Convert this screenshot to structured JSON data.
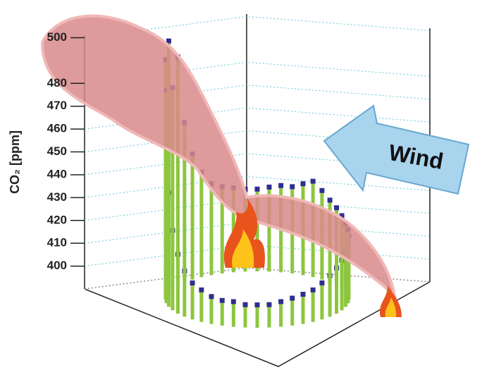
{
  "chart_data": {
    "type": "stem3d",
    "y_label": "CO₂ [ppm]",
    "annotation": "Wind",
    "ylim": [
      390,
      502
    ],
    "yticks": [
      400,
      410,
      420,
      430,
      440,
      450,
      460,
      470,
      480,
      500
    ],
    "grid": true,
    "stem_color": "#8cc63f",
    "marker_color": "#2e2e8f",
    "x": [
      0,
      7.5,
      15,
      22.5,
      30,
      37.5,
      45,
      52.5,
      60,
      67.5,
      75,
      82.5,
      90,
      97.5,
      105,
      112.5,
      120,
      127.5,
      135,
      142.5,
      150,
      157.5,
      165,
      172.5,
      180,
      187.5,
      195,
      202.5,
      210,
      217.5,
      225,
      232.5,
      240,
      247.5,
      255,
      262.5,
      270,
      277.5,
      285,
      292.5,
      300,
      307.5,
      315,
      322.5,
      330,
      337.5,
      345,
      352.5
    ],
    "values": [
      418,
      416,
      414,
      412,
      410,
      408,
      406,
      404,
      403,
      402,
      401,
      400,
      400,
      400,
      401,
      401,
      402,
      404,
      406,
      410,
      416,
      425,
      440,
      452,
      495,
      480,
      500,
      478,
      490,
      460,
      445,
      436,
      430,
      428,
      427,
      426,
      426,
      427,
      428,
      428,
      430,
      432,
      429,
      426,
      424,
      422,
      420,
      419
    ]
  }
}
